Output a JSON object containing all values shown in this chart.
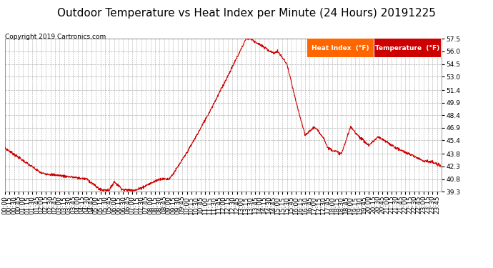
{
  "title": "Outdoor Temperature vs Heat Index per Minute (24 Hours) 20191225",
  "copyright": "Copyright 2019 Cartronics.com",
  "legend_label_hi": "Heat Index  (°F)",
  "legend_label_temp": "Temperature  (°F)",
  "legend_color_hi": "#ff6600",
  "legend_color_temp": "#cc0000",
  "line_color": "#cc0000",
  "background_color": "#ffffff",
  "plot_bg_color": "#ffffff",
  "grid_color": "#aaaaaa",
  "y_ticks": [
    39.3,
    40.8,
    42.3,
    43.8,
    45.4,
    46.9,
    48.4,
    49.9,
    51.4,
    53.0,
    54.5,
    56.0,
    57.5
  ],
  "y_min": 39.3,
  "y_max": 57.5,
  "title_fontsize": 11,
  "copyright_fontsize": 6.5,
  "tick_fontsize": 6.5,
  "legend_fontsize": 6.5,
  "x_tick_interval_min": 15
}
